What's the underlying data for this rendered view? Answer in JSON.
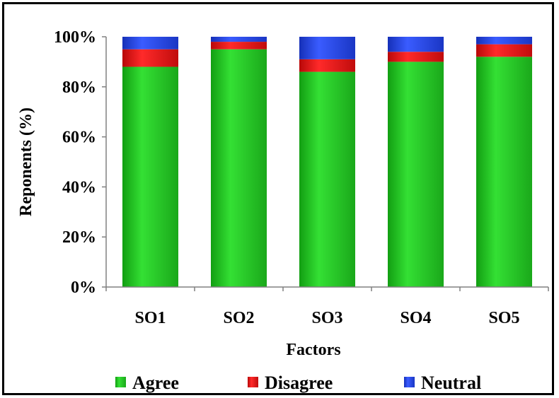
{
  "chart_data": {
    "type": "bar",
    "stacked": true,
    "title": "",
    "xlabel": "Factors",
    "ylabel": "Reponents (%)",
    "categories": [
      "SO1",
      "SO2",
      "SO3",
      "SO4",
      "SO5"
    ],
    "ylim": [
      0,
      100
    ],
    "yticks": [
      "0%",
      "20%",
      "40%",
      "60%",
      "80%",
      "100%"
    ],
    "grid": false,
    "legend_position": "bottom",
    "series": [
      {
        "name": "Agree",
        "color": "#22cc22",
        "values": [
          88,
          95,
          86,
          90,
          92
        ]
      },
      {
        "name": "Disagree",
        "color": "#ee1111",
        "values": [
          7,
          3,
          5,
          4,
          5
        ]
      },
      {
        "name": "Neutral",
        "color": "#2244ee",
        "values": [
          5,
          2,
          9,
          6,
          3
        ]
      }
    ]
  }
}
